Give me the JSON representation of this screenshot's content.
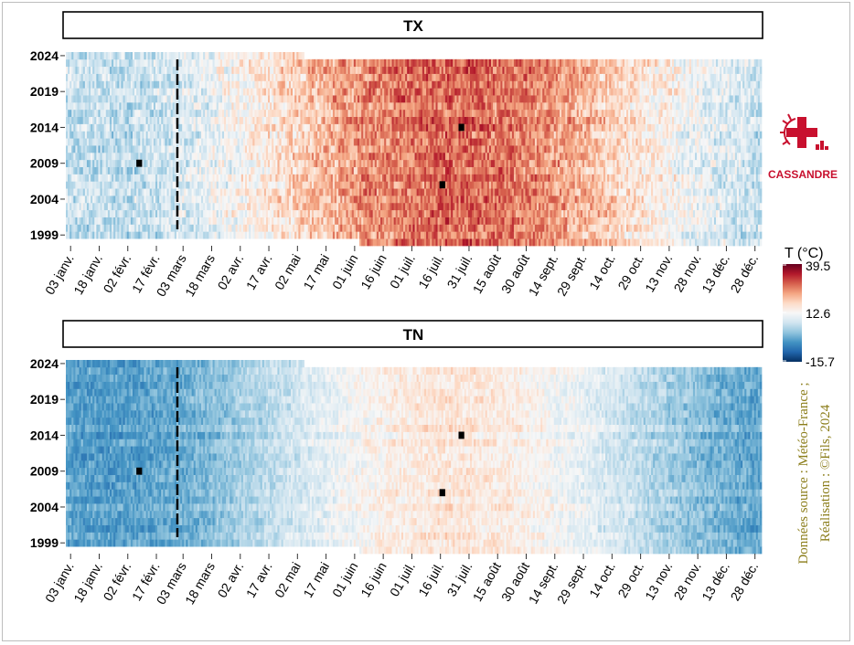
{
  "chart_data": {
    "type": "heatmap",
    "panels": [
      {
        "title": "TX",
        "variable": "max_temperature",
        "pattern": {
          "winter_c": 6,
          "summer_c": 28,
          "peak_day": 205,
          "noise_c": 5
        }
      },
      {
        "title": "TN",
        "variable": "min_temperature",
        "pattern": {
          "winter_c": -3,
          "summer_c": 16,
          "peak_day": 205,
          "noise_c": 3
        }
      }
    ],
    "x": {
      "unit": "day_of_year",
      "range": [
        1,
        365
      ],
      "ticks": [
        {
          "day": 3,
          "label": "03 janv."
        },
        {
          "day": 18,
          "label": "18 janv."
        },
        {
          "day": 33,
          "label": "02 févr."
        },
        {
          "day": 48,
          "label": "17 févr."
        },
        {
          "day": 62,
          "label": "03 mars"
        },
        {
          "day": 77,
          "label": "18 mars"
        },
        {
          "day": 92,
          "label": "02 avr."
        },
        {
          "day": 107,
          "label": "17 avr."
        },
        {
          "day": 122,
          "label": "02 mai"
        },
        {
          "day": 137,
          "label": "17 mai"
        },
        {
          "day": 152,
          "label": "01 juin"
        },
        {
          "day": 167,
          "label": "16 juin"
        },
        {
          "day": 182,
          "label": "01 juil."
        },
        {
          "day": 197,
          "label": "16 juil."
        },
        {
          "day": 212,
          "label": "31 juil."
        },
        {
          "day": 227,
          "label": "15 août"
        },
        {
          "day": 242,
          "label": "30 août"
        },
        {
          "day": 257,
          "label": "14 sept."
        },
        {
          "day": 272,
          "label": "29 sept."
        },
        {
          "day": 287,
          "label": "14 oct."
        },
        {
          "day": 302,
          "label": "29 oct."
        },
        {
          "day": 317,
          "label": "13 nov."
        },
        {
          "day": 332,
          "label": "28 nov."
        },
        {
          "day": 347,
          "label": "13 déc."
        },
        {
          "day": 362,
          "label": "28 déc."
        }
      ]
    },
    "y": {
      "unit": "year",
      "range": [
        1998,
        2024
      ],
      "ticks": [
        1999,
        2004,
        2009,
        2014,
        2019,
        2024
      ]
    },
    "coverage": {
      "first_year_start_day": 155,
      "last_year_end_day": 125
    },
    "marker_line_day": 59,
    "missing_cells": [
      {
        "year": 2009,
        "day": 38
      },
      {
        "year": 2006,
        "day": 197
      },
      {
        "year": 2014,
        "day": 207
      }
    ],
    "legend": {
      "title": "T (°C)",
      "min": -15.7,
      "mid": 12.6,
      "max": 39.5,
      "labels": [
        "39.5",
        "12.6",
        "-15.7"
      ],
      "colors": [
        "#053061",
        "#2166ac",
        "#4393c3",
        "#92c5de",
        "#d1e5f0",
        "#f7f7f7",
        "#fddbc7",
        "#f4a582",
        "#d6604d",
        "#b2182b",
        "#67001f"
      ]
    }
  },
  "logo": {
    "text": "CASSANDRE",
    "color": "#c8102e"
  },
  "caption": {
    "line1": "Données source : Météo-France ;",
    "line2": "Réalisation : ©Fils, 2024"
  }
}
